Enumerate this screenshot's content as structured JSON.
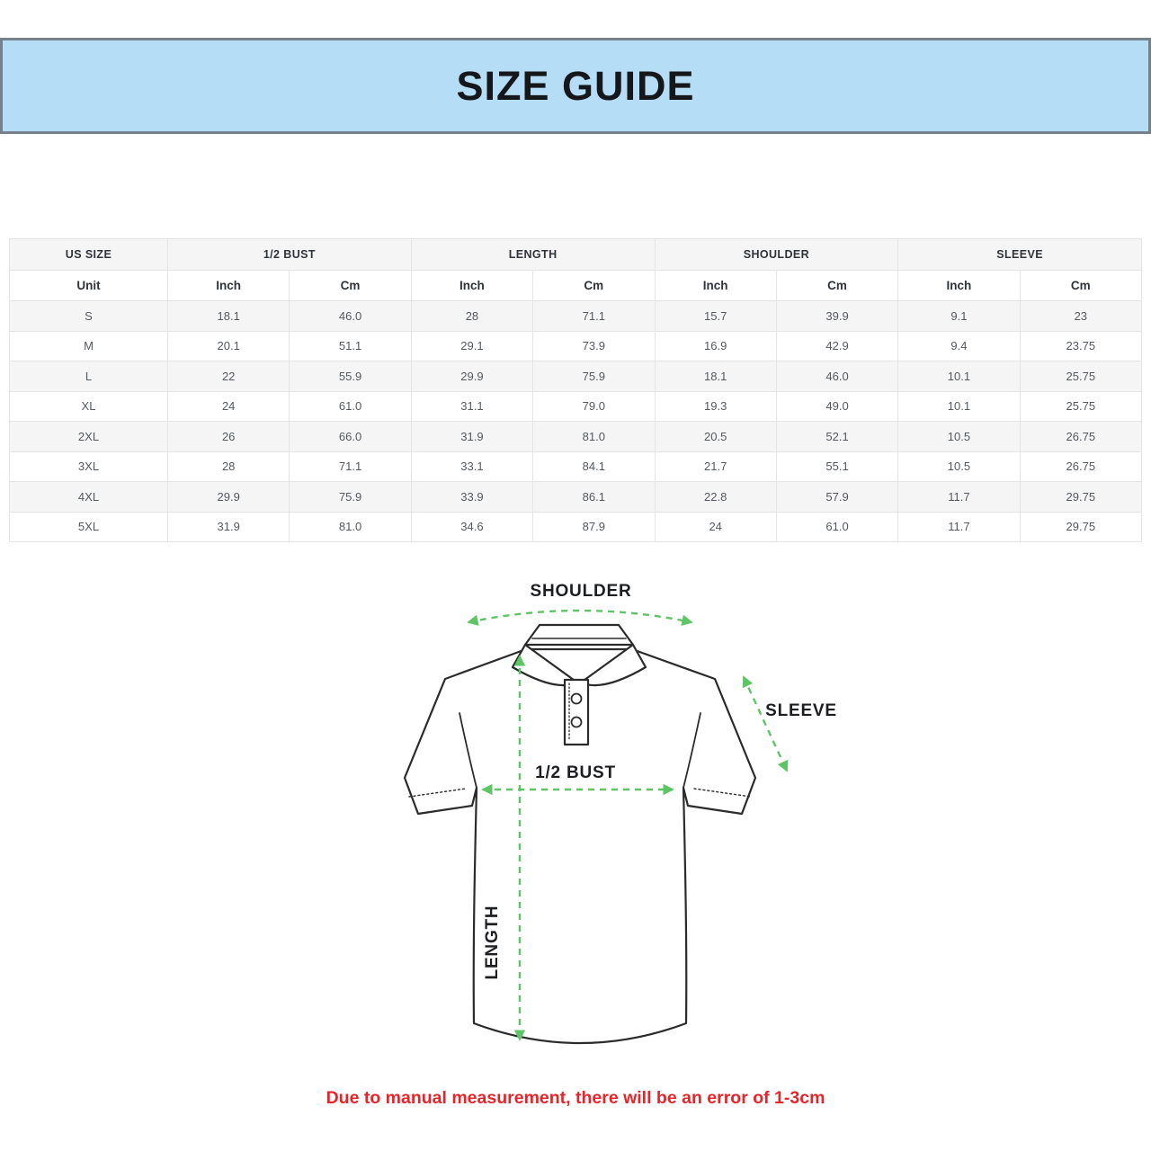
{
  "banner": {
    "title": "SIZE GUIDE",
    "bg_color": "#b5ddf6",
    "border_color": "#75828c"
  },
  "table": {
    "groups": [
      {
        "label": "US SIZE"
      },
      {
        "label": "1/2 BUST"
      },
      {
        "label": "LENGTH"
      },
      {
        "label": "SHOULDER"
      },
      {
        "label": "SLEEVE"
      }
    ],
    "unit_row": [
      "Unit",
      "Inch",
      "Cm",
      "Inch",
      "Cm",
      "Inch",
      "Cm",
      "Inch",
      "Cm"
    ],
    "rows": [
      {
        "size": "S",
        "values": [
          "18.1",
          "46.0",
          "28",
          "71.1",
          "15.7",
          "39.9",
          "9.1",
          "23"
        ]
      },
      {
        "size": "M",
        "values": [
          "20.1",
          "51.1",
          "29.1",
          "73.9",
          "16.9",
          "42.9",
          "9.4",
          "23.75"
        ]
      },
      {
        "size": "L",
        "values": [
          "22",
          "55.9",
          "29.9",
          "75.9",
          "18.1",
          "46.0",
          "10.1",
          "25.75"
        ]
      },
      {
        "size": "XL",
        "values": [
          "24",
          "61.0",
          "31.1",
          "79.0",
          "19.3",
          "49.0",
          "10.1",
          "25.75"
        ]
      },
      {
        "size": "2XL",
        "values": [
          "26",
          "66.0",
          "31.9",
          "81.0",
          "20.5",
          "52.1",
          "10.5",
          "26.75"
        ]
      },
      {
        "size": "3XL",
        "values": [
          "28",
          "71.1",
          "33.1",
          "84.1",
          "21.7",
          "55.1",
          "10.5",
          "26.75"
        ]
      },
      {
        "size": "4XL",
        "values": [
          "29.9",
          "75.9",
          "33.9",
          "86.1",
          "22.8",
          "57.9",
          "11.7",
          "29.75"
        ]
      },
      {
        "size": "5XL",
        "values": [
          "31.9",
          "81.0",
          "34.6",
          "87.9",
          "24",
          "61.0",
          "11.7",
          "29.75"
        ]
      }
    ],
    "stripe_color": "#f5f5f6",
    "border_color": "#e2e4e6"
  },
  "diagram": {
    "labels": {
      "shoulder": "SHOULDER",
      "sleeve": "SLEEVE",
      "half_bust": "1/2 BUST",
      "length": "LENGTH"
    },
    "arrow_color": "#5ec566",
    "outline_color": "#2b2b2b"
  },
  "note": {
    "text": "Due to manual measurement, there will be an error of 1-3cm",
    "color": "#e5252a"
  }
}
